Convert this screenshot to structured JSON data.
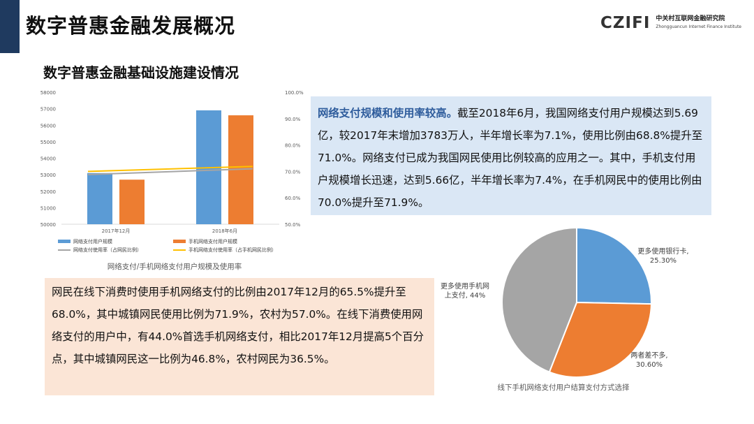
{
  "header": {
    "title": "数字普惠金融发展概况",
    "logo_mark": "CZIFI",
    "logo_cn": "中关村互联网金融研究院",
    "logo_en": "Zhongguancun Internet Finance Institute"
  },
  "section_title": "数字普惠金融基础设施建设情况",
  "colors": {
    "blue": "#5b9bd5",
    "orange": "#ed7d31",
    "gray": "#a5a5a5",
    "yellow": "#ffc000"
  },
  "chart_data": [
    {
      "type": "bar",
      "title": "网络支付/手机网络支付用户规模及使用率",
      "categories": [
        "2017年12月",
        "2018年6月"
      ],
      "left_axis": {
        "min": 50000,
        "max": 58000,
        "step": 1000,
        "ticks": [
          "50000",
          "51000",
          "52000",
          "53000",
          "54000",
          "55000",
          "56000",
          "57000",
          "58000"
        ]
      },
      "right_axis": {
        "min": 50,
        "max": 100,
        "step": 10,
        "ticks": [
          "50.0%",
          "60.0%",
          "70.0%",
          "80.0%",
          "90.0%",
          "100.0%"
        ]
      },
      "series": [
        {
          "name": "网络支付用户规模",
          "type": "bar",
          "axis": "left",
          "color": "#5b9bd5",
          "values": [
            53100,
            56900
          ]
        },
        {
          "name": "手机网络支付用户规模",
          "type": "bar",
          "axis": "left",
          "color": "#ed7d31",
          "values": [
            52700,
            56600
          ]
        },
        {
          "name": "网络支付使用率（占网民比例）",
          "type": "line",
          "axis": "right",
          "color": "#a5a5a5",
          "values": [
            68.8,
            71.0
          ]
        },
        {
          "name": "手机网络支付使用率（占手机网民比例）",
          "type": "line",
          "axis": "right",
          "color": "#ffc000",
          "values": [
            70.0,
            71.9
          ]
        }
      ],
      "legend_position": "bottom",
      "grid": false
    },
    {
      "type": "pie",
      "title": "线下手机网络支付用户结算支付方式选择",
      "slices": [
        {
          "label": "更多使用银行卡,",
          "value_text": "25.30%",
          "value": 25.3,
          "color": "#5b9bd5"
        },
        {
          "label": "两者差不多,",
          "value_text": "30.60%",
          "value": 30.6,
          "color": "#ed7d31"
        },
        {
          "label": "更多使用手机网络上支付, 44%",
          "value_text": "",
          "value": 44.0,
          "color": "#a5a5a5"
        }
      ]
    }
  ],
  "blue_box": {
    "highlight": "网络支付规模和使用率较高。",
    "text": "截至2018年6月，我国网络支付用户规模达到5.69亿，较2017年末增加3783万人，半年增长率为7.1%，使用比例由68.8%提升至71.0%。网络支付已成为我国网民使用比例较高的应用之一。其中，手机支付用户规模增长迅速，达到5.66亿，半年增长率为7.4%，在手机网民中的使用比例由70.0%提升至71.9%。"
  },
  "orange_box": {
    "text": "网民在线下消费时使用手机网络支付的比例由2017年12月的65.5%提升至68.0%，其中城镇网民使用比例为71.9%，农村为57.0%。在线下消费使用网络支付的用户中，有44.0%首选手机网络支付，相比2017年12月提高5个百分点，其中城镇网民这一比例为46.8%，农村网民为36.5%。"
  }
}
